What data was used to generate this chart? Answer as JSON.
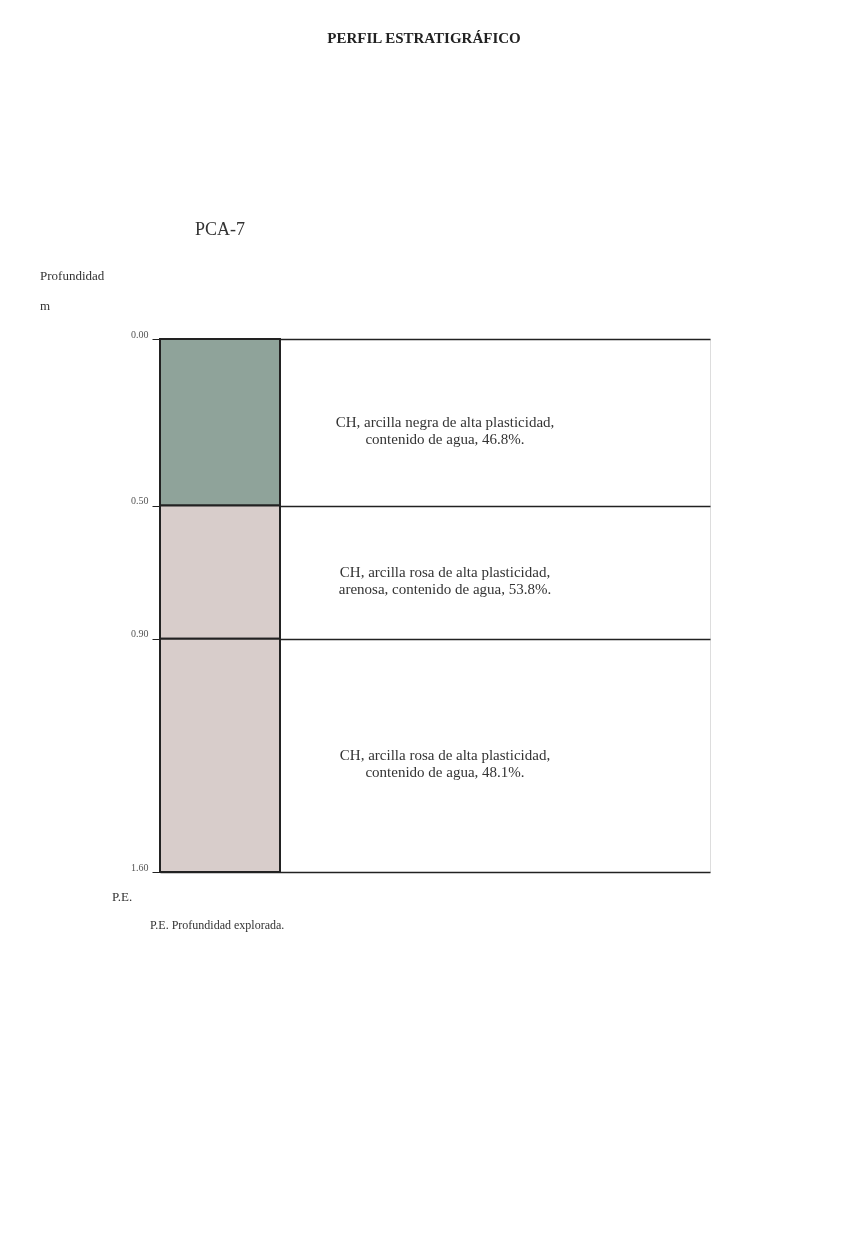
{
  "chart_data": {
    "type": "bar",
    "stacked": true,
    "title": "PERFIL    ESTRATIGRÁFICO",
    "subtitle": "PCA-7",
    "ylabel": "Profundidad\nm",
    "categories": [
      null
    ],
    "series": [
      {
        "name": "CH, arcilla negra de alta plasticidad,\ncontenido de agua, 46.8%.",
        "color": "#8fa39a",
        "values": [
          0.5
        ]
      },
      {
        "name": "CH, arcilla rosa de alta plasticidad,\narenosa, contenido de agua, 53.8%.",
        "color": "#d8cdcb",
        "values": [
          0.4
        ]
      },
      {
        "name": "CH, arcilla rosa de alta plasticidad,\ncontenido de agua, 48.1%.",
        "color": "#d8cdcb",
        "values": [
          0.7
        ]
      }
    ],
    "ylim": [
      1.6,
      0
    ],
    "yticks": [
      {
        "value": 0,
        "label": "0.00"
      },
      {
        "value": 0.5,
        "label": "0.50"
      },
      {
        "value": 0.9,
        "label": "0.90"
      },
      {
        "value": 1.6,
        "label": "1.60"
      }
    ],
    "grid": "y",
    "legend": false,
    "annotations": [
      "P.E.",
      "P.E. Profundidad explorada."
    ]
  }
}
